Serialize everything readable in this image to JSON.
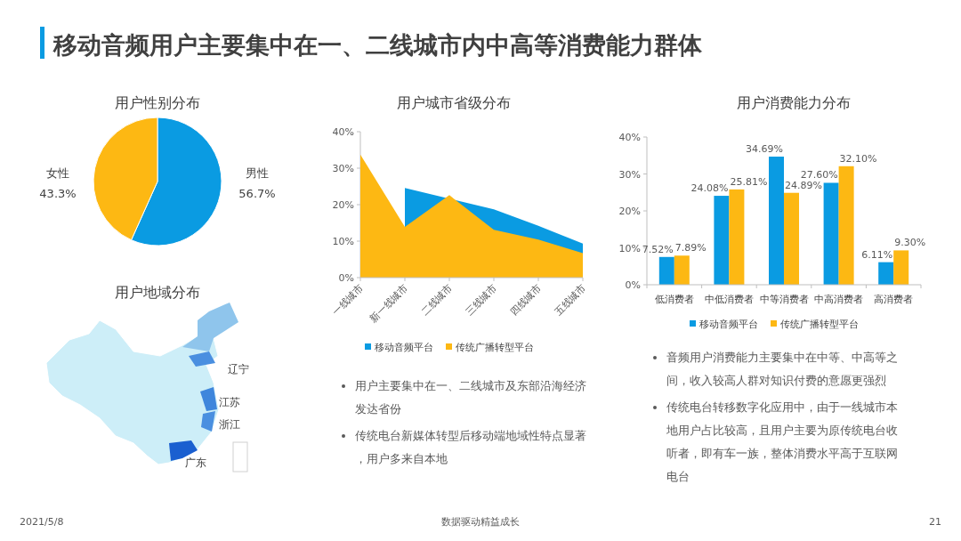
{
  "chart_data": [
    {
      "type": "other",
      "title": "移动音频用户主要集中在一、二线城市内中高等消费能力群体",
      "annotations": [
        "2021/5/8",
        "数据驱动精益成长",
        "21"
      ]
    },
    {
      "type": "pie",
      "title": "用户性别分布",
      "categories": [
        "男性",
        "女性"
      ],
      "values": [
        56.7,
        43.3
      ],
      "colors": [
        "#0a9be2",
        "#fdb813"
      ],
      "value_labels": [
        "56.7%",
        "43.3%"
      ]
    },
    {
      "type": "other",
      "title": "用户地域分布",
      "annotations": [
        "辽宁",
        "江苏",
        "浙江",
        "广东"
      ]
    },
    {
      "type": "area",
      "title": "用户城市省级分布",
      "categories": [
        "一线城市",
        "新一线城市",
        "二线城市",
        "三线城市",
        "四线城市",
        "五线城市"
      ],
      "series": [
        {
          "name": "移动音频平台",
          "color": "#0a9be2",
          "values": [
            null,
            24.6,
            null,
            18.7,
            14.2,
            9.3
          ]
        },
        {
          "name": "传统广播转型平台",
          "color": "#fdb813",
          "values": [
            33.7,
            13.9,
            22.6,
            13.1,
            10.4,
            6.7
          ]
        }
      ],
      "ylim": [
        0,
        40
      ],
      "yticks": [
        {
          "value": 0,
          "label": "0%"
        },
        {
          "value": 10,
          "label": "10%"
        },
        {
          "value": 20,
          "label": "20%"
        },
        {
          "value": 30,
          "label": "30%"
        },
        {
          "value": 40,
          "label": "40%"
        }
      ],
      "legend": "bottom",
      "annotations": [
        "用户主要集中在一、二线城市及东部沿海经济发达省份",
        "传统电台新媒体转型后移动端地域性特点显著，用户多来自本地"
      ]
    },
    {
      "type": "bar",
      "title": "用户消费能力分布",
      "categories": [
        "低消费者",
        "中低消费者",
        "中等消费者",
        "中高消费者",
        "高消费者"
      ],
      "series": [
        {
          "name": "移动音频平台",
          "color": "#0a9be2",
          "values": [
            7.52,
            24.08,
            34.69,
            27.6,
            6.11
          ],
          "value_labels": [
            "7.52%",
            "24.08%",
            "34.69%",
            "27.60%",
            "6.11%"
          ]
        },
        {
          "name": "传统广播转型平台",
          "color": "#fdb813",
          "values": [
            7.89,
            25.81,
            24.89,
            32.1,
            9.3
          ],
          "value_labels": [
            "7.89%",
            "25.81%",
            "24.89%",
            "32.10%",
            "9.30%"
          ]
        }
      ],
      "ylim": [
        0,
        40
      ],
      "yticks": [
        {
          "value": 0,
          "label": "0%"
        },
        {
          "value": 10,
          "label": "10%"
        },
        {
          "value": 20,
          "label": "20%"
        },
        {
          "value": 30,
          "label": "30%"
        },
        {
          "value": 40,
          "label": "40%"
        }
      ],
      "legend": "bottom",
      "annotations": [
        "音频用户消费能力主要集中在中等、中高等之间，收入较高人群对知识付费的意愿更强烈",
        "传统电台转移数字化应用中，由于一线城市本地用户占比较高，且用户主要为原传统电台收听者，即有车一族，整体消费水平高于互联网电台"
      ]
    }
  ]
}
